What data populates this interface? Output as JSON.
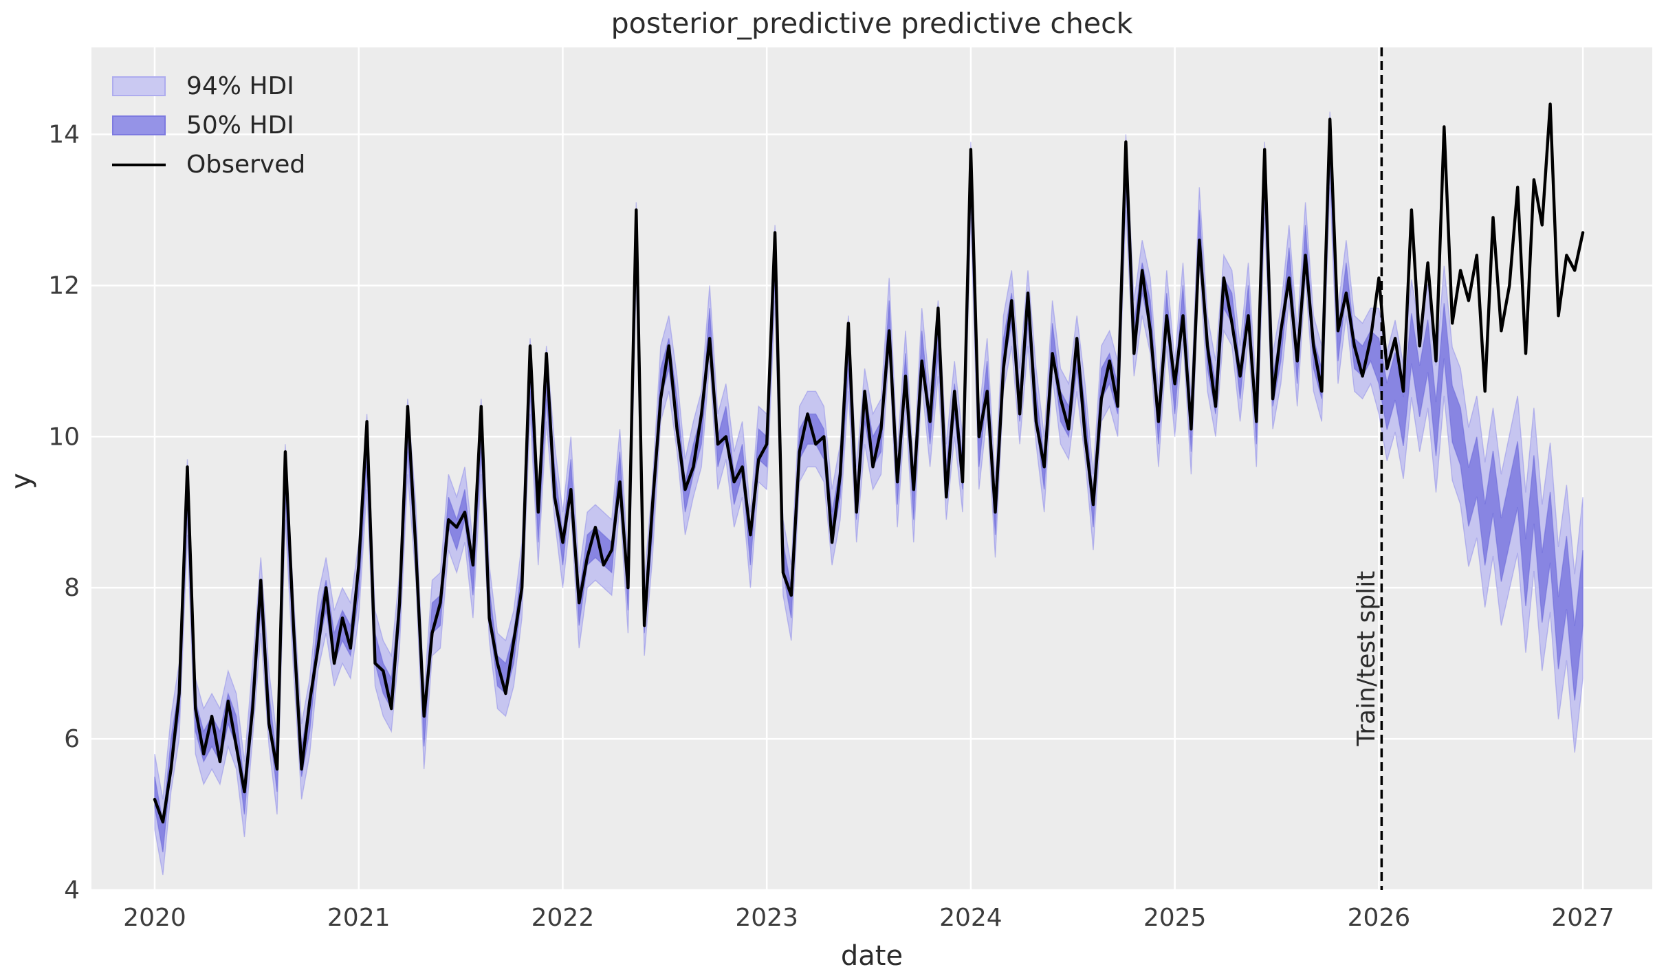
{
  "chart_data": {
    "type": "line",
    "title": "posterior_predictive predictive check",
    "xlabel": "date",
    "ylabel": "y",
    "grid": true,
    "legend_position": "upper left",
    "legend": {
      "items": [
        {
          "label": "94% HDI",
          "kind": "patch",
          "fill": "#cac9f2",
          "edge": "#aeacee"
        },
        {
          "label": "50% HDI",
          "kind": "patch",
          "fill": "#9593e7",
          "edge": "#7d7ae0"
        },
        {
          "label": "Observed",
          "kind": "line",
          "color": "#000000"
        }
      ]
    },
    "annotation": {
      "label": "Train/test split",
      "x": 2026.0,
      "style": "vertical-dashed"
    },
    "colors": {
      "band94": "#c6c5f0",
      "band94_edge": "#8280e6",
      "band50": "#8885e2",
      "band50_edge": "#6461d8",
      "observed": "#000000",
      "axes_background": "#ececec",
      "grid": "#ffffff",
      "tick_text": "#3c3c3c",
      "split_line": "#000000"
    },
    "xlim": [
      2019.69,
      2027.34
    ],
    "ylim": [
      4,
      15.15
    ],
    "x_tick_labels": [
      "2020",
      "2021",
      "2022",
      "2023",
      "2024",
      "2025",
      "2026",
      "2027"
    ],
    "y_tick_labels": [
      "4",
      "6",
      "8",
      "10",
      "12",
      "14"
    ],
    "x": {
      "start": 2020.0,
      "step": 0.04,
      "n": 176
    },
    "split_index": 150,
    "hdi": {
      "hdi94_halfwidth_train": 0.5,
      "hdi94_halfwidth_test_start": 0.7,
      "hdi94_halfwidth_test_end": 1.2,
      "hdi50_halfwidth_train": 0.2,
      "hdi50_halfwidth_test_start": 0.3,
      "hdi50_halfwidth_test_end": 0.5
    },
    "series": [
      {
        "name": "Observed",
        "values": [
          5.2,
          4.9,
          5.6,
          6.6,
          9.6,
          6.4,
          5.8,
          6.3,
          5.7,
          6.5,
          5.9,
          5.3,
          6.4,
          8.1,
          6.2,
          5.6,
          9.8,
          7.5,
          5.6,
          6.5,
          7.2,
          8.0,
          7.0,
          7.6,
          7.2,
          8.3,
          10.2,
          7.0,
          6.9,
          6.4,
          7.8,
          10.4,
          8.5,
          6.3,
          7.4,
          7.8,
          8.9,
          8.8,
          9.0,
          8.3,
          10.4,
          7.6,
          7.0,
          6.6,
          7.3,
          8.0,
          11.2,
          9.0,
          11.1,
          9.2,
          8.6,
          9.3,
          7.8,
          8.4,
          8.8,
          8.3,
          8.5,
          9.4,
          8.0,
          13.0,
          7.5,
          9.1,
          10.5,
          11.2,
          10.1,
          9.3,
          9.6,
          10.3,
          11.3,
          9.9,
          10.0,
          9.4,
          9.6,
          8.7,
          9.7,
          9.9,
          12.7,
          8.2,
          7.9,
          9.8,
          10.3,
          9.9,
          10.0,
          8.6,
          9.5,
          11.5,
          9.0,
          10.6,
          9.6,
          10.1,
          11.4,
          9.4,
          10.8,
          9.3,
          11.0,
          10.2,
          11.7,
          9.2,
          10.6,
          9.4,
          13.8,
          10.0,
          10.6,
          9.0,
          10.9,
          11.8,
          10.3,
          11.9,
          10.2,
          9.6,
          11.1,
          10.5,
          10.1,
          11.3,
          10.0,
          9.1,
          10.5,
          11.0,
          10.4,
          13.9,
          11.1,
          12.2,
          11.4,
          10.2,
          11.6,
          10.7,
          11.6,
          10.1,
          12.6,
          11.2,
          10.4,
          12.1,
          11.5,
          10.8,
          11.6,
          10.2,
          13.8,
          10.5,
          11.4,
          12.1,
          11.0,
          12.4,
          11.2,
          10.6,
          14.2,
          11.4,
          11.9,
          11.2,
          10.8,
          11.3,
          12.1,
          10.9,
          11.3,
          10.6,
          13.0,
          11.2,
          12.3,
          11.0,
          14.1,
          11.5,
          12.2,
          11.8,
          12.4,
          10.6,
          12.9,
          11.4,
          12.0,
          13.3,
          11.1,
          13.4,
          12.8,
          14.4,
          11.6,
          12.4,
          12.2,
          12.7
        ]
      },
      {
        "name": "hdi_center",
        "values": [
          5.3,
          4.7,
          5.8,
          6.5,
          9.2,
          6.3,
          5.9,
          6.1,
          5.9,
          6.4,
          6.1,
          5.2,
          6.5,
          7.9,
          6.4,
          5.5,
          9.4,
          7.4,
          5.7,
          6.3,
          7.4,
          7.9,
          7.2,
          7.5,
          7.3,
          8.1,
          9.8,
          7.2,
          6.8,
          6.6,
          7.7,
          10.0,
          8.6,
          6.1,
          7.6,
          7.7,
          9.0,
          8.7,
          9.1,
          8.1,
          10.0,
          7.8,
          6.9,
          6.8,
          7.2,
          8.1,
          10.8,
          8.8,
          10.7,
          9.4,
          8.5,
          9.5,
          7.7,
          8.5,
          8.6,
          8.5,
          8.4,
          9.6,
          7.9,
          12.6,
          7.6,
          8.9,
          10.7,
          11.1,
          10.3,
          9.2,
          9.7,
          10.1,
          11.5,
          9.8,
          10.2,
          9.3,
          9.7,
          8.5,
          9.9,
          9.8,
          12.3,
          8.4,
          7.8,
          9.9,
          10.1,
          10.1,
          9.9,
          8.8,
          9.4,
          11.1,
          9.1,
          10.4,
          9.8,
          10.0,
          11.6,
          9.3,
          10.9,
          9.1,
          11.2,
          10.1,
          11.3,
          9.4,
          10.5,
          9.5,
          13.4,
          9.8,
          10.8,
          8.9,
          11.1,
          11.7,
          10.4,
          11.7,
          10.4,
          9.5,
          11.3,
          10.4,
          10.2,
          11.1,
          10.2,
          9.0,
          10.7,
          10.9,
          10.5,
          13.5,
          11.3,
          12.1,
          11.6,
          10.1,
          11.7,
          10.5,
          11.8,
          10.0,
          12.8,
          11.1,
          10.5,
          11.9,
          11.7,
          10.7,
          11.8,
          10.1,
          13.4,
          10.6,
          11.2,
          12.3,
          10.9,
          12.6,
          11.1,
          10.7,
          13.8,
          11.2,
          12.1,
          11.1,
          11.0,
          11.2,
          11.0,
          10.4,
          10.8,
          10.2,
          11.3,
          10.6,
          11.2,
          10.1,
          11.4,
          10.3,
          10.0,
          9.2,
          9.6,
          8.7,
          9.4,
          8.5,
          9.0,
          9.5,
          8.2,
          9.3,
          8.0,
          8.8,
          7.4,
          8.2,
          7.0,
          8.0
        ]
      }
    ]
  }
}
